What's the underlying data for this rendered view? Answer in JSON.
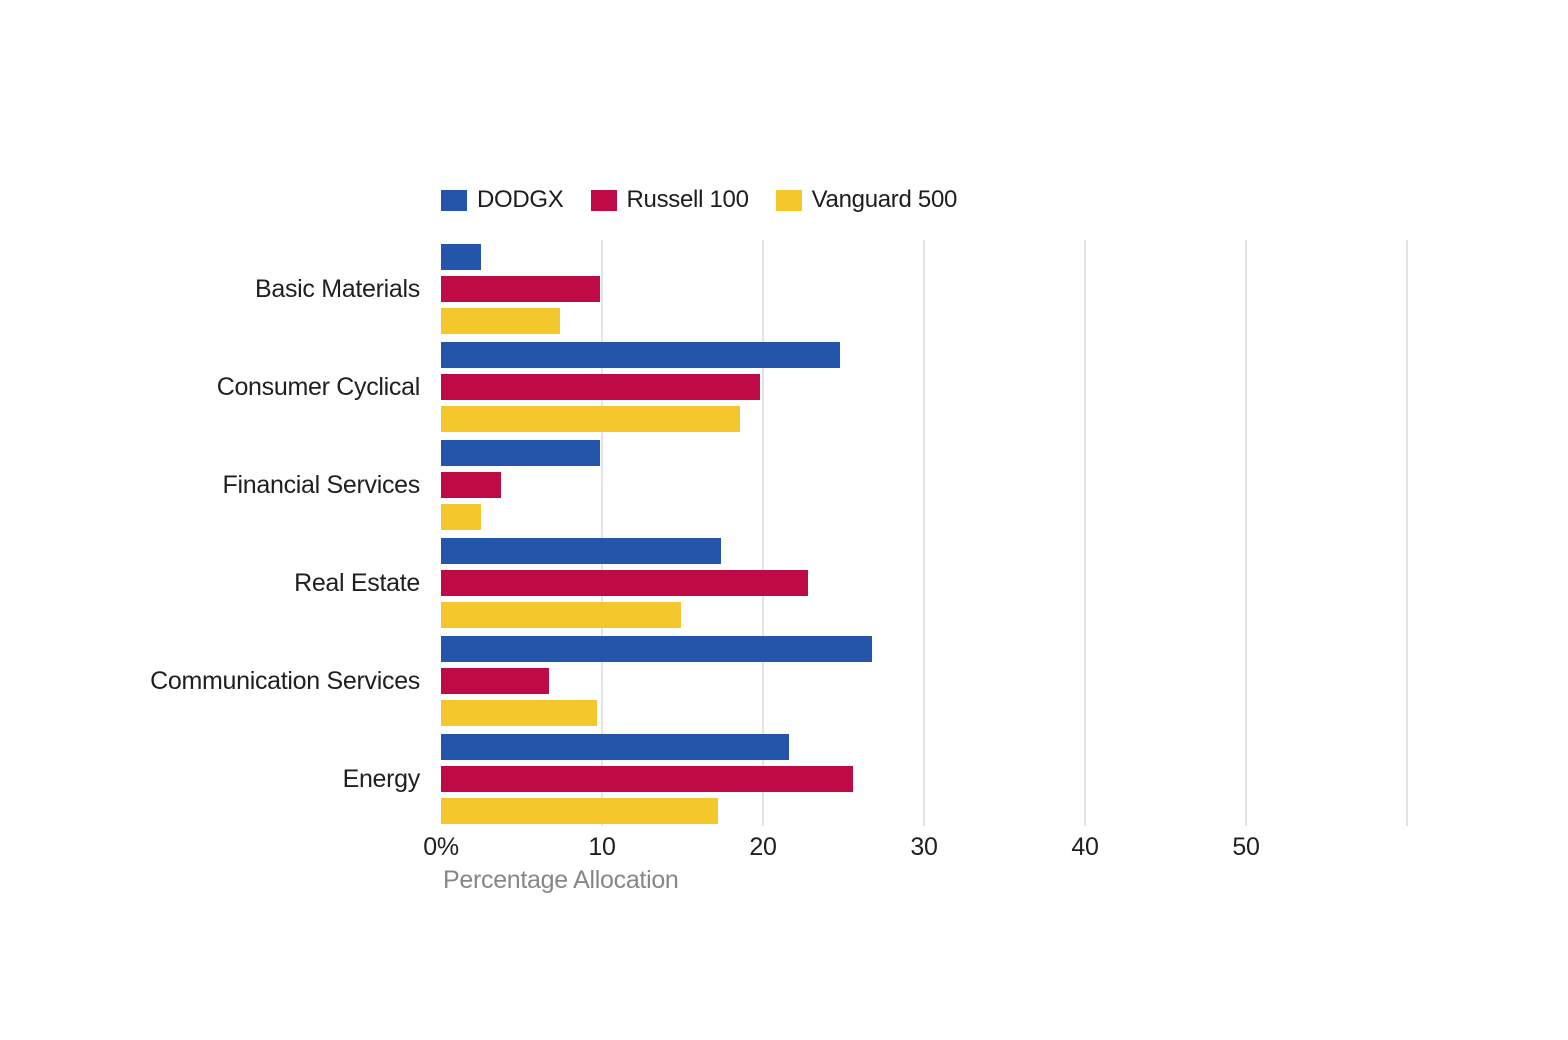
{
  "chart_data": {
    "type": "bar",
    "orientation": "horizontal",
    "title": "",
    "xlabel": "Percentage Allocation",
    "ylabel": "",
    "categories": [
      "Basic Materials",
      "Consumer Cyclical",
      "Financial Services",
      "Real Estate",
      "Communication Services",
      "Energy"
    ],
    "series": [
      {
        "name": "DODGX",
        "color": "#2355AA",
        "values": [
          2.5,
          24.8,
          9.9,
          17.4,
          26.8,
          21.6
        ]
      },
      {
        "name": "Russell 100",
        "color": "#BE0A45",
        "values": [
          9.9,
          19.8,
          3.7,
          22.8,
          6.7,
          25.6
        ]
      },
      {
        "name": "Vanguard 500",
        "color": "#F4C72C",
        "values": [
          7.4,
          18.6,
          2.5,
          14.9,
          9.7,
          17.2
        ]
      }
    ],
    "x_tick_labels": [
      "0%",
      "10",
      "20",
      "30",
      "40",
      "50"
    ],
    "x_tick_values": [
      0,
      10,
      20,
      30,
      40,
      50
    ],
    "gridline_values": [
      10,
      20,
      30,
      40,
      50,
      60
    ],
    "xlim": [
      0,
      60
    ],
    "legend_position": "top-left",
    "grid_on": true,
    "grid_color": "#e3e3e3",
    "text_color": "#1f1f1f",
    "axis_title_color": "#878787",
    "background_color": "#ffffff"
  }
}
